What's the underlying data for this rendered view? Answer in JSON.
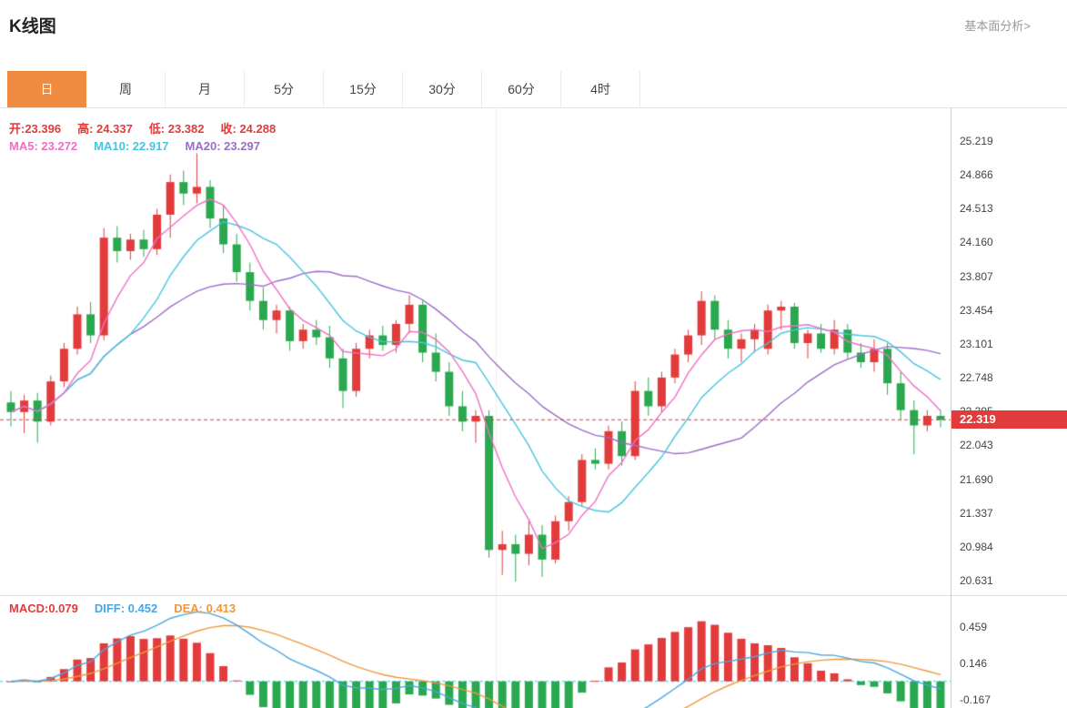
{
  "header": {
    "title": "K线图",
    "link": "基本面分析>"
  },
  "tabs": {
    "items": [
      {
        "label": "日",
        "active": true
      },
      {
        "label": "周",
        "active": false
      },
      {
        "label": "月",
        "active": false
      },
      {
        "label": "5分",
        "active": false
      },
      {
        "label": "15分",
        "active": false
      },
      {
        "label": "30分",
        "active": false
      },
      {
        "label": "60分",
        "active": false
      },
      {
        "label": "4时",
        "active": false
      }
    ],
    "active_color": "#ef8b41"
  },
  "readouts": {
    "ohlc": [
      {
        "label": "开:",
        "value": "23.396",
        "color": "#e23b3b"
      },
      {
        "label": "高: ",
        "value": "24.337",
        "color": "#e23b3b"
      },
      {
        "label": "低: ",
        "value": "23.382",
        "color": "#e23b3b"
      },
      {
        "label": "收: ",
        "value": "24.288",
        "color": "#e23b3b"
      }
    ],
    "ma": [
      {
        "label": "MA5: ",
        "value": "23.272",
        "color": "#ef6fc4"
      },
      {
        "label": "MA10: ",
        "value": "22.917",
        "color": "#45c5dd"
      },
      {
        "label": "MA20: ",
        "value": "23.297",
        "color": "#9b6bc8"
      }
    ],
    "macd": [
      {
        "label": "MACD:",
        "value": "0.079",
        "color": "#e23b3b"
      },
      {
        "label": "DIFF: ",
        "value": "0.452",
        "color": "#4aa6e0"
      },
      {
        "label": "DEA: ",
        "value": "0.413",
        "color": "#f0973c"
      }
    ]
  },
  "chart_data": {
    "type": "candlestick",
    "interval": "日",
    "current_price": 22.319,
    "current_price_label": "22.319",
    "y_range": [
      20.631,
      25.219
    ],
    "y_ticks": [
      25.219,
      24.866,
      24.513,
      24.16,
      23.807,
      23.454,
      23.101,
      22.748,
      22.395,
      22.043,
      21.69,
      21.337,
      20.984,
      20.631
    ],
    "macd_ticks": [
      0.459,
      0.146,
      -0.167
    ],
    "overlays": [
      "MA5",
      "MA10",
      "MA20"
    ],
    "indicator": "MACD(12,26,9)",
    "colors": {
      "up": "#e23b3b",
      "down": "#2aa84f",
      "ma5": "#ef6fc4",
      "ma10": "#45c5dd",
      "ma20": "#9b6bc8",
      "diff": "#4aa6e0",
      "dea": "#f0973c",
      "price_line": "#e23b3b",
      "zero_line": "#45c5dd",
      "grid": "#ececec",
      "axis_text": "#444"
    },
    "candles": [
      [
        22.5,
        22.62,
        22.25,
        22.4
      ],
      [
        22.4,
        22.58,
        22.18,
        22.52
      ],
      [
        22.52,
        22.6,
        22.08,
        22.3
      ],
      [
        22.3,
        22.78,
        22.26,
        22.72
      ],
      [
        22.72,
        23.12,
        22.66,
        23.06
      ],
      [
        23.06,
        23.5,
        23.0,
        23.42
      ],
      [
        23.42,
        23.55,
        23.12,
        23.2
      ],
      [
        23.2,
        24.32,
        23.15,
        24.22
      ],
      [
        24.22,
        24.34,
        23.96,
        24.08
      ],
      [
        24.08,
        24.26,
        23.99,
        24.2
      ],
      [
        24.2,
        24.3,
        24.02,
        24.1
      ],
      [
        24.1,
        24.52,
        24.04,
        24.46
      ],
      [
        24.46,
        24.88,
        24.22,
        24.8
      ],
      [
        24.8,
        24.92,
        24.56,
        24.68
      ],
      [
        24.68,
        25.1,
        24.58,
        24.75
      ],
      [
        24.75,
        24.82,
        24.32,
        24.42
      ],
      [
        24.42,
        24.56,
        24.06,
        24.15
      ],
      [
        24.15,
        24.26,
        23.76,
        23.86
      ],
      [
        23.86,
        23.96,
        23.46,
        23.56
      ],
      [
        23.56,
        23.7,
        23.26,
        23.36
      ],
      [
        23.36,
        23.52,
        23.22,
        23.46
      ],
      [
        23.46,
        23.5,
        23.04,
        23.14
      ],
      [
        23.14,
        23.32,
        23.06,
        23.26
      ],
      [
        23.26,
        23.36,
        23.1,
        23.18
      ],
      [
        23.18,
        23.3,
        22.86,
        22.96
      ],
      [
        22.96,
        23.06,
        22.44,
        22.62
      ],
      [
        22.62,
        23.12,
        22.56,
        23.06
      ],
      [
        23.06,
        23.26,
        22.96,
        23.2
      ],
      [
        23.2,
        23.3,
        23.04,
        23.1
      ],
      [
        23.1,
        23.36,
        23.02,
        23.32
      ],
      [
        23.32,
        23.62,
        23.22,
        23.52
      ],
      [
        23.52,
        23.56,
        22.92,
        23.02
      ],
      [
        23.02,
        23.22,
        22.72,
        22.82
      ],
      [
        22.82,
        22.92,
        22.36,
        22.46
      ],
      [
        22.46,
        22.62,
        22.2,
        22.3
      ],
      [
        22.3,
        22.42,
        22.08,
        22.36
      ],
      [
        22.36,
        22.42,
        20.88,
        20.96
      ],
      [
        20.96,
        21.16,
        20.7,
        21.02
      ],
      [
        21.02,
        21.12,
        20.63,
        20.92
      ],
      [
        20.92,
        21.26,
        20.8,
        21.12
      ],
      [
        21.12,
        21.22,
        20.68,
        20.86
      ],
      [
        20.86,
        21.32,
        20.82,
        21.26
      ],
      [
        21.26,
        21.52,
        21.16,
        21.46
      ],
      [
        21.46,
        21.96,
        21.42,
        21.9
      ],
      [
        21.9,
        22.02,
        21.8,
        21.86
      ],
      [
        21.86,
        22.26,
        21.8,
        22.2
      ],
      [
        22.2,
        22.3,
        21.84,
        21.94
      ],
      [
        21.94,
        22.72,
        21.9,
        22.62
      ],
      [
        22.62,
        22.76,
        22.36,
        22.46
      ],
      [
        22.46,
        22.82,
        22.4,
        22.76
      ],
      [
        22.76,
        23.06,
        22.7,
        23.0
      ],
      [
        23.0,
        23.26,
        22.92,
        23.2
      ],
      [
        23.2,
        23.66,
        23.1,
        23.56
      ],
      [
        23.56,
        23.62,
        23.16,
        23.26
      ],
      [
        23.26,
        23.36,
        22.96,
        23.06
      ],
      [
        23.06,
        23.22,
        22.92,
        23.16
      ],
      [
        23.16,
        23.32,
        23.02,
        23.26
      ],
      [
        23.06,
        23.52,
        23.0,
        23.46
      ],
      [
        23.46,
        23.56,
        23.26,
        23.5
      ],
      [
        23.5,
        23.54,
        23.06,
        23.12
      ],
      [
        23.12,
        23.26,
        22.96,
        23.22
      ],
      [
        23.22,
        23.32,
        23.02,
        23.06
      ],
      [
        23.06,
        23.36,
        23.0,
        23.26
      ],
      [
        23.26,
        23.32,
        22.96,
        23.02
      ],
      [
        23.02,
        23.12,
        22.86,
        22.92
      ],
      [
        22.92,
        23.16,
        22.82,
        23.06
      ],
      [
        23.06,
        23.12,
        22.58,
        22.7
      ],
      [
        22.7,
        22.82,
        22.32,
        22.42
      ],
      [
        22.42,
        22.52,
        21.96,
        22.26
      ],
      [
        22.26,
        22.42,
        22.2,
        22.36
      ],
      [
        22.36,
        22.42,
        22.24,
        22.319
      ]
    ]
  }
}
